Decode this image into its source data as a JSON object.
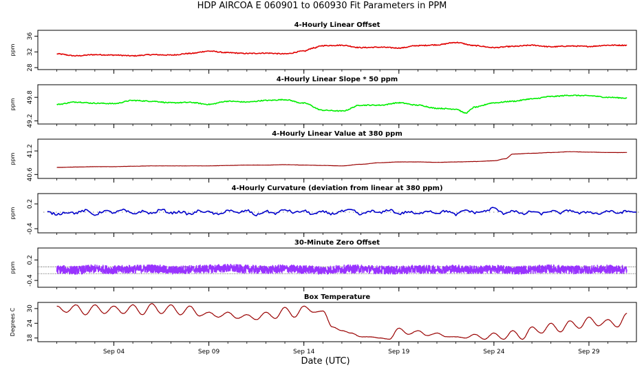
{
  "figure": {
    "title": "HDP   AIRCOA E   060901 to 060930   Fit Parameters in PPM",
    "xlabel": "Date (UTC)"
  },
  "chart_data": [
    {
      "type": "line",
      "title": "4-Hourly Linear Offset",
      "ylabel": "ppm",
      "yticks": [
        "28",
        "32",
        "36"
      ],
      "ytick_values": [
        28,
        32,
        36
      ],
      "ylim": [
        27.5,
        37.5
      ],
      "xlim": [
        0,
        31.5
      ],
      "color": "#e00000",
      "x": [
        1.0,
        2.0,
        3.0,
        4.0,
        5.0,
        6.0,
        7.0,
        8.0,
        9.0,
        10.0,
        11.0,
        12.0,
        13.0,
        14.0,
        14.5,
        15.0,
        16.0,
        17.0,
        18.0,
        19.0,
        20.0,
        21.0,
        22.0,
        23.0,
        24.0,
        25.0,
        26.0,
        27.0,
        28.0,
        29.0,
        30.0,
        31.0
      ],
      "y": [
        31.5,
        31.0,
        31.3,
        31.2,
        31.0,
        31.3,
        31.2,
        31.6,
        32.2,
        31.8,
        31.6,
        31.7,
        31.5,
        32.2,
        33.0,
        33.6,
        33.7,
        33.1,
        33.2,
        33.0,
        33.6,
        33.8,
        34.4,
        33.6,
        33.1,
        33.4,
        33.7,
        33.3,
        33.5,
        33.4,
        33.7,
        33.7
      ]
    },
    {
      "type": "line",
      "title": "4-Hourly Linear Slope * 50 ppm",
      "ylabel": "ppm",
      "yticks": [
        "49.2",
        "49.8"
      ],
      "ytick_values": [
        49.2,
        49.8
      ],
      "ylim": [
        49.12,
        50.12
      ],
      "xlim": [
        0,
        31.5
      ],
      "color": "#00ee00",
      "x": [
        1.0,
        2.0,
        3.0,
        4.0,
        5.0,
        6.0,
        7.0,
        8.0,
        9.0,
        10.0,
        11.0,
        12.0,
        13.0,
        14.0,
        15.0,
        16.0,
        17.0,
        18.0,
        19.0,
        20.0,
        21.0,
        22.0,
        22.5,
        23.0,
        24.0,
        25.0,
        26.0,
        27.0,
        28.0,
        29.0,
        30.0,
        31.0
      ],
      "y": [
        49.62,
        49.68,
        49.65,
        49.64,
        49.72,
        49.7,
        49.66,
        49.67,
        49.62,
        49.7,
        49.68,
        49.72,
        49.74,
        49.65,
        49.47,
        49.45,
        49.6,
        49.6,
        49.66,
        49.6,
        49.52,
        49.5,
        49.4,
        49.55,
        49.66,
        49.7,
        49.76,
        49.82,
        49.85,
        49.84,
        49.8,
        49.78
      ]
    },
    {
      "type": "line",
      "title": "4-Hourly Linear Value at 380 ppm",
      "ylabel": "ppm",
      "yticks": [
        "40.6",
        "41.2"
      ],
      "ytick_values": [
        40.6,
        41.2
      ],
      "ylim": [
        40.5,
        41.5
      ],
      "xlim": [
        0,
        31.5
      ],
      "color": "#990000",
      "x": [
        1.0,
        2.0,
        3.0,
        4.0,
        5.0,
        6.0,
        7.0,
        8.0,
        9.0,
        10.0,
        11.0,
        12.0,
        13.0,
        14.0,
        15.0,
        16.0,
        17.0,
        18.0,
        19.0,
        20.0,
        21.0,
        22.0,
        23.0,
        24.0,
        24.6,
        25.0,
        26.0,
        27.0,
        28.0,
        29.0,
        30.0,
        31.0
      ],
      "y": [
        40.78,
        40.79,
        40.8,
        40.8,
        40.81,
        40.82,
        40.82,
        40.82,
        40.82,
        40.83,
        40.84,
        40.84,
        40.85,
        40.84,
        40.83,
        40.82,
        40.86,
        40.9,
        40.92,
        40.92,
        40.91,
        40.92,
        40.93,
        40.95,
        41.0,
        41.12,
        41.14,
        41.16,
        41.18,
        41.17,
        41.16,
        41.16
      ]
    },
    {
      "type": "line",
      "title": "4-Hourly Curvature (deviation from linear at 380 ppm)",
      "ylabel": "ppm",
      "yticks": [
        "-0.4",
        "0.2"
      ],
      "ytick_values": [
        -0.4,
        0.2
      ],
      "ylim": [
        -0.5,
        0.45
      ],
      "xlim": [
        0,
        31.5
      ],
      "color": "#0000cc",
      "x": [
        0.5,
        1.0,
        1.5,
        2.0,
        2.5,
        3.0,
        3.5,
        4.0,
        4.5,
        5.0,
        5.5,
        6.0,
        6.5,
        7.0,
        7.5,
        8.0,
        8.5,
        9.0,
        9.5,
        10.0,
        10.5,
        11.0,
        11.5,
        12.0,
        12.5,
        13.0,
        13.5,
        14.0,
        14.5,
        15.0,
        15.5,
        16.0,
        16.5,
        17.0,
        17.5,
        18.0,
        18.5,
        19.0,
        19.5,
        20.0,
        20.5,
        21.0,
        21.5,
        22.0,
        22.5,
        23.0,
        23.5,
        24.0,
        24.5,
        25.0,
        25.5,
        26.0,
        26.5,
        27.0,
        27.5,
        28.0,
        28.5,
        29.0,
        29.5,
        30.0,
        30.5,
        31.0,
        31.5
      ],
      "y": [
        0.0,
        -0.05,
        0.0,
        -0.02,
        0.04,
        -0.06,
        0.03,
        -0.01,
        0.05,
        -0.04,
        0.02,
        -0.03,
        0.06,
        -0.02,
        0.01,
        -0.05,
        0.03,
        0.0,
        -0.06,
        0.05,
        -0.02,
        0.04,
        -0.07,
        0.02,
        -0.03,
        0.06,
        -0.01,
        0.03,
        -0.05,
        0.01,
        -0.04,
        0.02,
        0.05,
        -0.06,
        0.03,
        -0.02,
        0.06,
        -0.04,
        0.01,
        -0.05,
        0.04,
        -0.02,
        0.03,
        -0.06,
        0.05,
        -0.01,
        0.02,
        0.1,
        -0.03,
        0.04,
        -0.05,
        0.02,
        -0.04,
        0.03,
        -0.02,
        0.05,
        -0.03,
        0.01,
        -0.04,
        0.03,
        -0.02,
        0.02,
        0.0
      ],
      "dotted_extent": [
        0.3,
        31.7
      ]
    },
    {
      "type": "line",
      "title": "30-Minute Zero Offset",
      "ylabel": "ppm",
      "yticks": [
        "-0.4",
        "0.2"
      ],
      "ytick_values": [
        -0.4,
        0.2
      ],
      "ylim": [
        -0.6,
        0.55
      ],
      "xlim": [
        0,
        31.5
      ],
      "color": "#9933ff",
      "reference_lines": [
        0.0,
        -0.2
      ],
      "x": [
        1.0,
        2.0,
        3.0,
        4.0,
        5.0,
        6.0,
        7.0,
        8.0,
        9.0,
        10.0,
        11.0,
        12.0,
        13.0,
        14.0,
        15.0,
        16.0,
        17.0,
        18.0,
        19.0,
        20.0,
        21.0,
        22.0,
        23.0,
        24.0,
        25.0,
        26.0,
        27.0,
        28.0,
        29.0,
        30.0,
        31.0
      ],
      "y": [
        -0.08,
        -0.1,
        -0.06,
        -0.09,
        -0.07,
        -0.05,
        -0.1,
        -0.08,
        -0.06,
        -0.04,
        -0.07,
        -0.09,
        -0.06,
        -0.08,
        -0.1,
        -0.07,
        -0.06,
        -0.09,
        -0.1,
        -0.07,
        -0.08,
        -0.06,
        -0.09,
        -0.07,
        -0.1,
        -0.08,
        -0.06,
        -0.09,
        -0.08,
        -0.07,
        -0.08
      ],
      "noise_amplitude": 0.12
    },
    {
      "type": "line",
      "title": "Box Temperature",
      "ylabel": "Degrees C",
      "yticks": [
        "18",
        "24",
        "30"
      ],
      "ytick_values": [
        18,
        24,
        30
      ],
      "ylim": [
        16.5,
        32.5
      ],
      "xlim": [
        0,
        31.5
      ],
      "color": "#990000",
      "x": [
        1.0,
        1.5,
        2.0,
        2.5,
        3.0,
        3.5,
        4.0,
        4.5,
        5.0,
        5.5,
        6.0,
        6.5,
        7.0,
        7.5,
        8.0,
        8.5,
        9.0,
        9.5,
        10.0,
        10.5,
        11.0,
        11.5,
        12.0,
        12.5,
        13.0,
        13.5,
        14.0,
        14.5,
        15.0,
        15.5,
        16.0,
        16.5,
        17.0,
        17.5,
        18.0,
        18.5,
        19.0,
        19.5,
        20.0,
        20.5,
        21.0,
        21.5,
        22.0,
        22.5,
        23.0,
        23.5,
        24.0,
        24.5,
        25.0,
        25.5,
        26.0,
        26.5,
        27.0,
        27.5,
        28.0,
        28.5,
        29.0,
        29.5,
        30.0,
        30.5,
        31.0
      ],
      "y": [
        31.0,
        28.5,
        31.5,
        27.5,
        31.5,
        28.0,
        31.0,
        28.0,
        31.5,
        27.5,
        32.0,
        28.0,
        31.5,
        27.5,
        31.0,
        27.0,
        28.5,
        26.5,
        28.5,
        26.0,
        27.5,
        25.5,
        28.5,
        26.0,
        30.5,
        26.5,
        31.0,
        28.5,
        29.0,
        22.5,
        21.0,
        20.0,
        18.5,
        18.5,
        18.0,
        17.5,
        22.0,
        19.5,
        21.0,
        19.0,
        20.0,
        18.5,
        18.5,
        18.0,
        19.5,
        17.5,
        20.0,
        17.5,
        21.0,
        17.5,
        22.5,
        20.0,
        24.0,
        20.5,
        25.0,
        22.0,
        26.5,
        23.0,
        25.5,
        22.5,
        28.0
      ]
    }
  ],
  "x_axis": {
    "tick_labels": [
      "Sep 04",
      "Sep 09",
      "Sep 14",
      "Sep 19",
      "Sep 24",
      "Sep 29"
    ],
    "tick_values": [
      4,
      9,
      14,
      19,
      24,
      29
    ],
    "minor_ticks_every_day": true
  }
}
